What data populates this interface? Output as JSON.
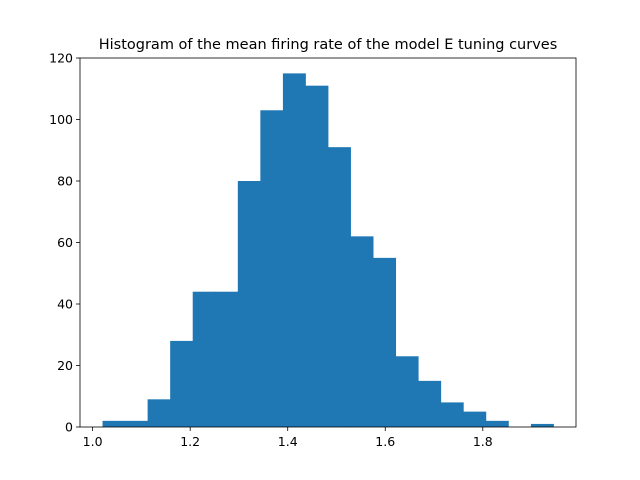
{
  "chart_data": {
    "type": "histogram",
    "title": "Histogram of the mean firing rate of the model E tuning curves",
    "xlabel": "",
    "ylabel": "",
    "bar_color": "#1f77b4",
    "bin_start": 1.0203,
    "bin_width": 0.04623,
    "counts": [
      2,
      2,
      9,
      28,
      44,
      44,
      80,
      103,
      115,
      111,
      91,
      62,
      55,
      23,
      15,
      8,
      5,
      2,
      0,
      1
    ],
    "xlim": [
      0.9741,
      1.9911
    ],
    "ylim": [
      0,
      120
    ],
    "xticks": [
      1.0,
      1.2,
      1.4,
      1.6,
      1.8
    ],
    "xtick_labels": [
      "1.0",
      "1.2",
      "1.4",
      "1.6",
      "1.8"
    ],
    "yticks": [
      0,
      20,
      40,
      60,
      80,
      100,
      120
    ],
    "ytick_labels": [
      "0",
      "20",
      "40",
      "60",
      "80",
      "100",
      "120"
    ]
  }
}
